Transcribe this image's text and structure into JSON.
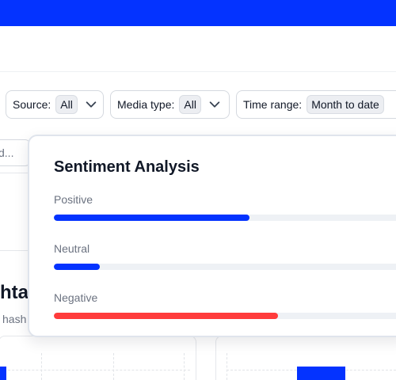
{
  "filters": {
    "source": {
      "label": "Source:",
      "value": "All"
    },
    "media_type": {
      "label": "Media type:",
      "value": "All"
    },
    "time_range": {
      "label": "Time range:",
      "value": "Month to date"
    }
  },
  "background": {
    "search_partial": "d...",
    "heading_partial": "htag",
    "subtext_partial": "hash"
  },
  "sentiment": {
    "title": "Sentiment Analysis",
    "items": [
      {
        "label": "Positive",
        "fraction": 0.55,
        "color": "#0433ff"
      },
      {
        "label": "Neutral",
        "fraction": 0.13,
        "color": "#0433ff"
      },
      {
        "label": "Negative",
        "fraction": 0.63,
        "color": "#ff3b3b"
      }
    ]
  },
  "colors": {
    "brand": "#0433ff",
    "negative": "#ff3b3b"
  }
}
